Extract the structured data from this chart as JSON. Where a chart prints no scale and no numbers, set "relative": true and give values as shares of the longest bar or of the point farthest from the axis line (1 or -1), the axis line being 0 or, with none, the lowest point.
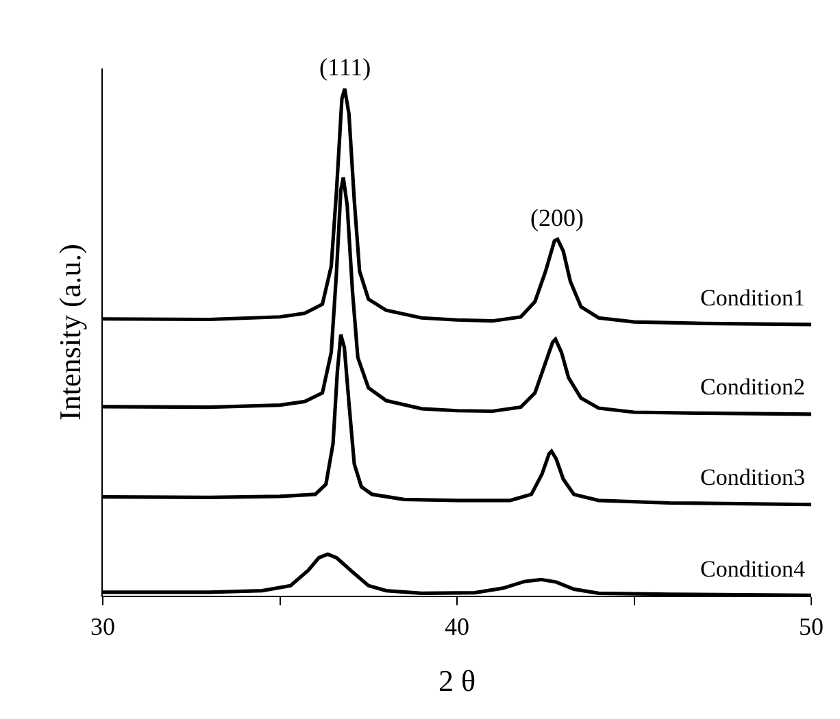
{
  "chart_data": {
    "type": "line",
    "relative": true,
    "xlabel": "2 θ",
    "ylabel": "Intensity (a.u.)",
    "xlim": [
      30,
      50
    ],
    "xticks": [
      30,
      {
        "value": 35,
        "label": null
      },
      40,
      {
        "value": 45,
        "label": null
      },
      50
    ],
    "legend": false,
    "marker": "none",
    "line_style": "solid",
    "annotations": [
      {
        "text": "(111)",
        "x": 36.83,
        "y": 1.0
      },
      {
        "text": "(200)",
        "x": 42.84,
        "y": 0.703
      }
    ],
    "series": [
      {
        "name": "Condition1",
        "color": "#000000",
        "x": [
          30,
          33,
          35,
          35.7,
          36.2,
          36.45,
          36.6,
          36.75,
          36.83,
          36.95,
          37.1,
          37.25,
          37.5,
          38,
          39,
          40,
          41,
          41.8,
          42.2,
          42.5,
          42.75,
          42.84,
          43.0,
          43.2,
          43.5,
          44,
          45,
          47,
          50
        ],
        "values": [
          0.546,
          0.545,
          0.55,
          0.557,
          0.575,
          0.65,
          0.8,
          0.98,
          1.0,
          0.95,
          0.78,
          0.64,
          0.585,
          0.563,
          0.548,
          0.544,
          0.542,
          0.55,
          0.58,
          0.64,
          0.7,
          0.703,
          0.68,
          0.62,
          0.57,
          0.548,
          0.54,
          0.537,
          0.535
        ]
      },
      {
        "name": "Condition2",
        "color": "#000000",
        "x": [
          30,
          33,
          35,
          35.7,
          36.2,
          36.45,
          36.6,
          36.72,
          36.79,
          36.9,
          37.05,
          37.2,
          37.5,
          38,
          39,
          40,
          41,
          41.8,
          42.2,
          42.5,
          42.7,
          42.78,
          42.95,
          43.15,
          43.5,
          44,
          45,
          47,
          50
        ],
        "values": [
          0.373,
          0.372,
          0.376,
          0.383,
          0.4,
          0.48,
          0.64,
          0.8,
          0.825,
          0.77,
          0.6,
          0.47,
          0.41,
          0.385,
          0.369,
          0.365,
          0.364,
          0.372,
          0.4,
          0.46,
          0.5,
          0.506,
          0.48,
          0.43,
          0.39,
          0.37,
          0.362,
          0.36,
          0.358
        ]
      },
      {
        "name": "Condition3",
        "color": "#000000",
        "x": [
          30,
          33,
          35,
          36.0,
          36.3,
          36.5,
          36.62,
          36.72,
          36.82,
          36.95,
          37.1,
          37.3,
          37.6,
          38.5,
          40,
          41.5,
          42.1,
          42.4,
          42.6,
          42.67,
          42.8,
          43.0,
          43.3,
          44,
          46,
          50
        ],
        "values": [
          0.195,
          0.194,
          0.196,
          0.2,
          0.22,
          0.3,
          0.44,
          0.515,
          0.49,
          0.38,
          0.26,
          0.215,
          0.2,
          0.19,
          0.188,
          0.188,
          0.2,
          0.24,
          0.28,
          0.285,
          0.27,
          0.23,
          0.2,
          0.188,
          0.183,
          0.18
        ]
      },
      {
        "name": "Condition4",
        "color": "#000000",
        "x": [
          30,
          33,
          34.5,
          35.3,
          35.8,
          36.1,
          36.35,
          36.6,
          37.0,
          37.5,
          38,
          39,
          40.5,
          41.3,
          41.9,
          42.37,
          42.8,
          43.3,
          44,
          46,
          50
        ],
        "values": [
          0.007,
          0.007,
          0.01,
          0.02,
          0.05,
          0.075,
          0.082,
          0.075,
          0.05,
          0.02,
          0.01,
          0.005,
          0.006,
          0.015,
          0.028,
          0.032,
          0.027,
          0.013,
          0.005,
          0.003,
          0.001
        ]
      }
    ]
  }
}
